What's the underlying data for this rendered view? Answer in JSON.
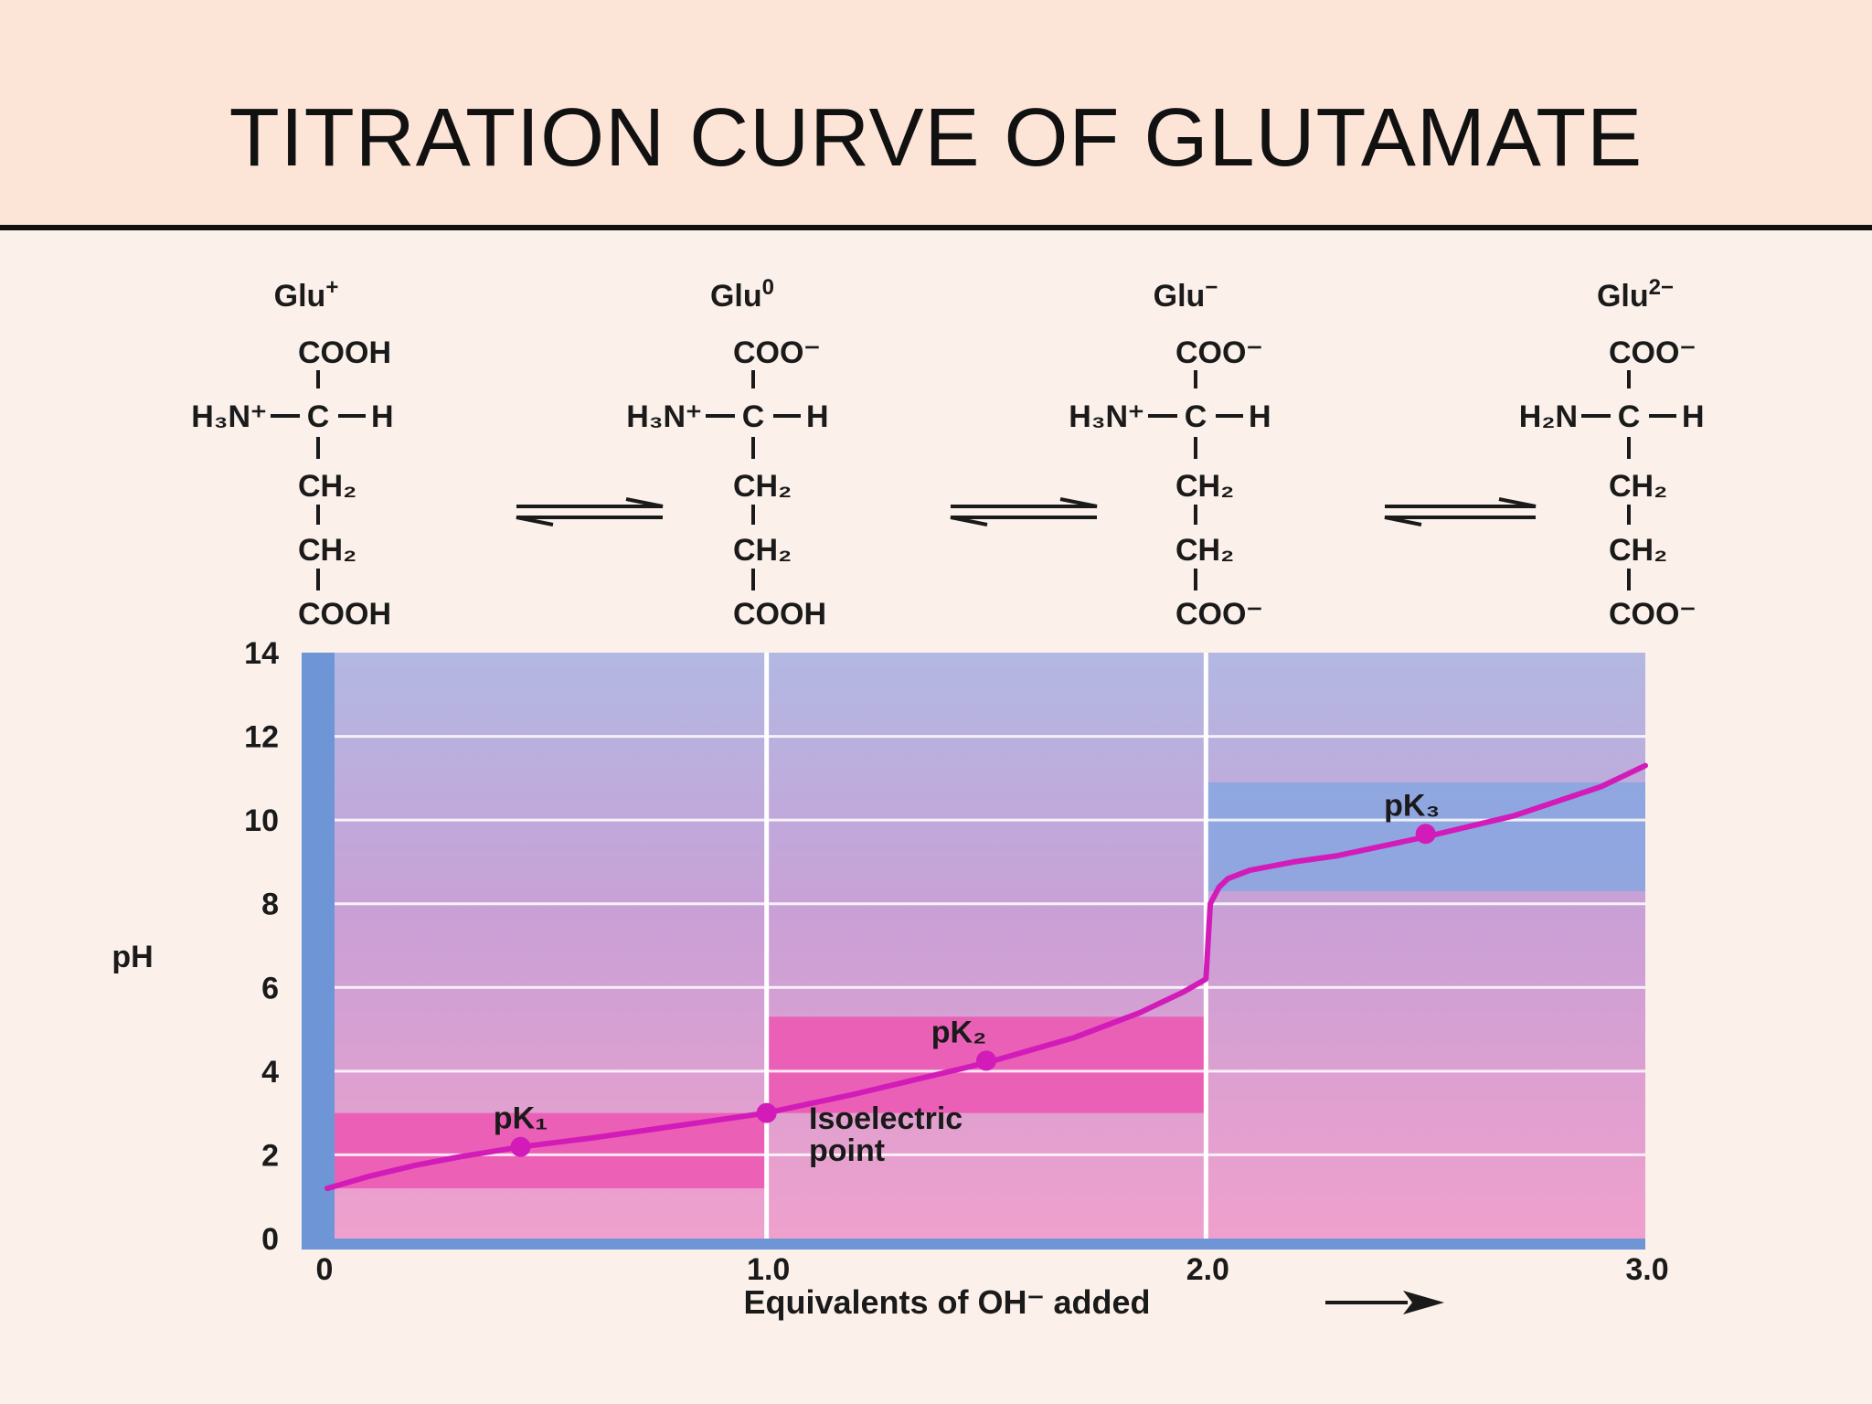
{
  "slide": {
    "title": "TITRATION CURVE OF GLUTAMATE"
  },
  "species": [
    {
      "name": "Glu",
      "charge": "+",
      "top": "COOH",
      "left": "H₃N⁺",
      "center": "C",
      "right": "H",
      "chain": [
        "CH₂",
        "CH₂"
      ],
      "bottom": "COOH"
    },
    {
      "name": "Glu",
      "charge": "0",
      "top": "COO⁻",
      "left": "H₃N⁺",
      "center": "C",
      "right": "H",
      "chain": [
        "CH₂",
        "CH₂"
      ],
      "bottom": "COOH"
    },
    {
      "name": "Glu",
      "charge": "−",
      "top": "COO⁻",
      "left": "H₃N⁺",
      "center": "C",
      "right": "H",
      "chain": [
        "CH₂",
        "CH₂"
      ],
      "bottom": "COO⁻"
    },
    {
      "name": "Glu",
      "charge": "2−",
      "top": "COO⁻",
      "left": "H₂N",
      "center": "C",
      "right": "H",
      "chain": [
        "CH₂",
        "CH₂"
      ],
      "bottom": "COO⁻"
    }
  ],
  "colors": {
    "curve": "#d21bb8",
    "region_low": "#f0a0cc",
    "region_mid": "#c9a0d6",
    "region_high": "#b2b8e2",
    "buffer_acid": "#ec55b2",
    "buffer_base": "#87a6e0",
    "axis_band": "#6e95d6",
    "gridline": "#ffffff"
  },
  "chart_data": {
    "type": "line",
    "xlabel": "Equivalents of OH⁻ added",
    "ylabel": "pH",
    "xlim": [
      0,
      3.0
    ],
    "ylim": [
      0,
      14
    ],
    "x_ticks": [
      {
        "value": 0,
        "label": "0"
      },
      {
        "value": 1.0,
        "label": "1.0"
      },
      {
        "value": 2.0,
        "label": "2.0"
      },
      {
        "value": 3.0,
        "label": "3.0"
      }
    ],
    "y_ticks": [
      {
        "value": 0,
        "label": "0"
      },
      {
        "value": 2,
        "label": "2"
      },
      {
        "value": 4,
        "label": "4"
      },
      {
        "value": 6,
        "label": "6"
      },
      {
        "value": 8,
        "label": "8"
      },
      {
        "value": 10,
        "label": "10"
      },
      {
        "value": 12,
        "label": "12"
      },
      {
        "value": 14,
        "label": "14"
      }
    ],
    "vertical_grid_x": [
      1.0,
      2.0
    ],
    "horizontal_grid_y": [
      2,
      4,
      6,
      8,
      10,
      12
    ],
    "series": [
      {
        "x": [
          0.0,
          0.1,
          0.2,
          0.3,
          0.44,
          0.6,
          0.8,
          1.0,
          1.2,
          1.5,
          1.7,
          1.85,
          1.95,
          2.0,
          2.01,
          2.03,
          2.05,
          2.1,
          2.2,
          2.3,
          2.5,
          2.7,
          2.9,
          3.0
        ],
        "y": [
          1.2,
          1.5,
          1.75,
          1.95,
          2.19,
          2.4,
          2.7,
          3.0,
          3.45,
          4.2,
          4.8,
          5.4,
          5.9,
          6.2,
          8.0,
          8.4,
          8.6,
          8.8,
          9.0,
          9.15,
          9.6,
          10.1,
          10.8,
          11.3
        ]
      }
    ],
    "buffer_regions": [
      {
        "x": [
          0.0,
          1.0
        ],
        "y": [
          1.2,
          3.0
        ],
        "tone": "acid"
      },
      {
        "x": [
          1.0,
          2.0
        ],
        "y": [
          3.0,
          5.3
        ],
        "tone": "acid"
      },
      {
        "x": [
          2.0,
          3.0
        ],
        "y": [
          8.3,
          10.9
        ],
        "tone": "base"
      }
    ],
    "points": [
      {
        "label": "pK₁",
        "x": 0.44,
        "y": 2.19
      },
      {
        "label": "Isoelectric point",
        "x": 1.0,
        "y": 3.0
      },
      {
        "label": "pK₂",
        "x": 1.5,
        "y": 4.25
      },
      {
        "label": "pK₃",
        "x": 2.5,
        "y": 9.67
      }
    ],
    "annotations": {
      "pk1": "pK₁",
      "pk2": "pK₂",
      "pk3": "pK₃",
      "isoelectric": [
        "Isoelectric",
        "point"
      ]
    }
  }
}
